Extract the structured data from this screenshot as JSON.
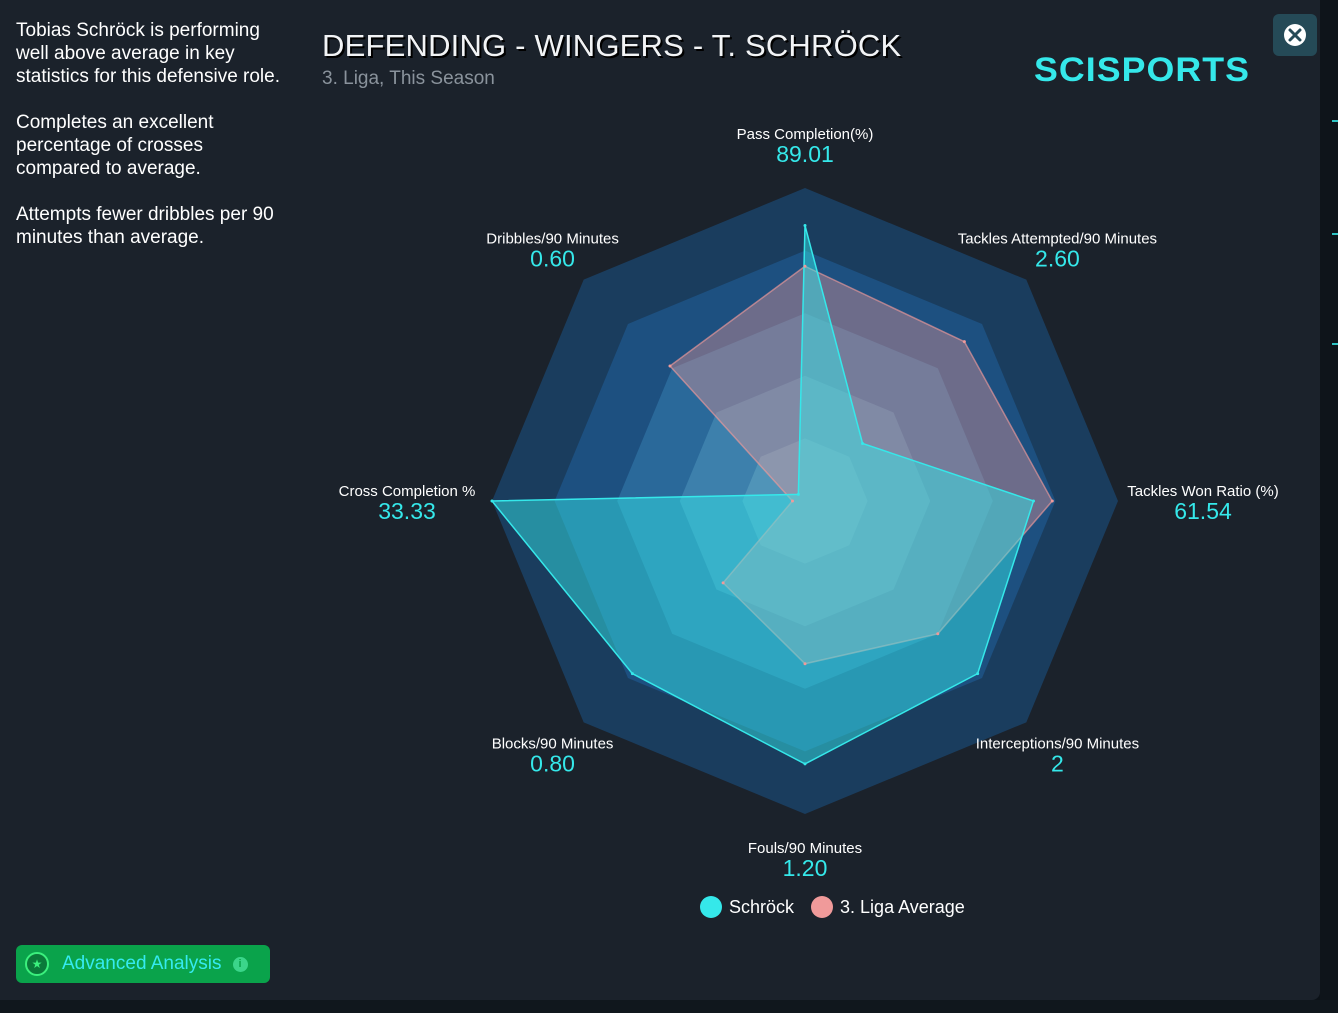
{
  "summary": {
    "paragraphs": [
      "Tobias Schröck is performing well above average in key statistics for this defensive role.",
      "Completes an excellent percentage of crosses compared to average.",
      "Attempts fewer dribbles per 90 minutes than average."
    ]
  },
  "header": {
    "title": "DEFENDING - WINGERS - T. SCHRÖCK",
    "subtitle": "3. Liga, This Season",
    "logo_text": "SCISPORTS"
  },
  "buttons": {
    "advanced_label": "Advanced Analysis"
  },
  "colors": {
    "player": "#35e8ea",
    "average": "#f09a9a",
    "accent": "#35e8ea",
    "button_green": "#0aa34b"
  },
  "chart_data": {
    "type": "radar",
    "title": "DEFENDING - WINGERS - T. SCHRÖCK",
    "subtitle": "3. Liga, This Season",
    "rings": 5,
    "axes": [
      {
        "label": "Pass Completion(%)",
        "value_label": "89.01",
        "player": 0.88,
        "average": 0.75
      },
      {
        "label": "Tackles Attempted/90 Minutes",
        "value_label": "2.60",
        "player": 0.26,
        "average": 0.72
      },
      {
        "label": "Tackles Won Ratio (%)",
        "value_label": "61.54",
        "player": 0.73,
        "average": 0.79
      },
      {
        "label": "Interceptions/90 Minutes",
        "value_label": "2",
        "player": 0.78,
        "average": 0.6
      },
      {
        "label": "Fouls/90 Minutes",
        "value_label": "1.20",
        "player": 0.84,
        "average": 0.52
      },
      {
        "label": "Blocks/90 Minutes",
        "value_label": "0.80",
        "player": 0.78,
        "average": 0.37
      },
      {
        "label": "Cross Completion %",
        "value_label": "33.33",
        "player": 1.0,
        "average": 0.04
      },
      {
        "label": "Dribbles/90 Minutes",
        "value_label": "0.60",
        "player": 0.03,
        "average": 0.61
      }
    ],
    "legend": [
      {
        "name": "Schröck",
        "color": "#35e8ea"
      },
      {
        "name": "3. Liga Average",
        "color": "#f09a9a"
      }
    ]
  }
}
